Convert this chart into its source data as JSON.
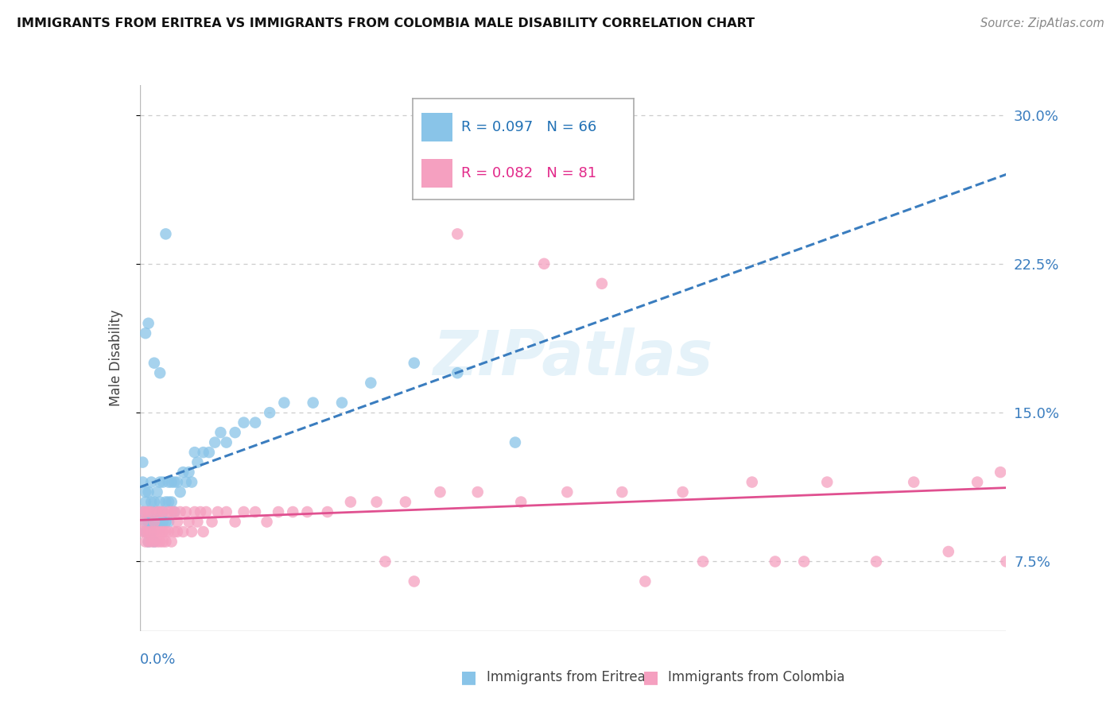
{
  "title": "IMMIGRANTS FROM ERITREA VS IMMIGRANTS FROM COLOMBIA MALE DISABILITY CORRELATION CHART",
  "source": "Source: ZipAtlas.com",
  "ylabel": "Male Disability",
  "yticks": [
    0.075,
    0.15,
    0.225,
    0.3
  ],
  "ytick_labels": [
    "7.5%",
    "15.0%",
    "22.5%",
    "30.0%"
  ],
  "xlim": [
    0.0,
    0.3
  ],
  "ylim": [
    0.04,
    0.315
  ],
  "eritrea_color": "#89c4e8",
  "eritrea_line_color": "#3a7dbf",
  "colombia_color": "#f5a0c0",
  "colombia_line_color": "#e05090",
  "bg_color": "#ffffff",
  "grid_color": "#cccccc",
  "watermark": "ZIPatlas",
  "er_R": "0.097",
  "er_N": "66",
  "co_R": "0.082",
  "co_N": "81",
  "er_x": [
    0.001,
    0.001,
    0.001,
    0.002,
    0.002,
    0.002,
    0.002,
    0.003,
    0.003,
    0.003,
    0.003,
    0.004,
    0.004,
    0.004,
    0.004,
    0.005,
    0.005,
    0.005,
    0.005,
    0.006,
    0.006,
    0.006,
    0.007,
    0.007,
    0.007,
    0.008,
    0.008,
    0.008,
    0.009,
    0.009,
    0.01,
    0.01,
    0.01,
    0.011,
    0.011,
    0.012,
    0.012,
    0.013,
    0.014,
    0.015,
    0.016,
    0.017,
    0.018,
    0.019,
    0.02,
    0.022,
    0.024,
    0.026,
    0.028,
    0.03,
    0.033,
    0.036,
    0.04,
    0.045,
    0.05,
    0.06,
    0.07,
    0.08,
    0.095,
    0.11,
    0.13,
    0.002,
    0.003,
    0.005,
    0.007,
    0.009
  ],
  "er_y": [
    0.115,
    0.1,
    0.125,
    0.105,
    0.095,
    0.11,
    0.09,
    0.1,
    0.095,
    0.11,
    0.085,
    0.095,
    0.105,
    0.115,
    0.09,
    0.095,
    0.105,
    0.1,
    0.085,
    0.1,
    0.095,
    0.11,
    0.115,
    0.105,
    0.095,
    0.115,
    0.1,
    0.095,
    0.105,
    0.095,
    0.105,
    0.115,
    0.095,
    0.115,
    0.105,
    0.115,
    0.1,
    0.115,
    0.11,
    0.12,
    0.115,
    0.12,
    0.115,
    0.13,
    0.125,
    0.13,
    0.13,
    0.135,
    0.14,
    0.135,
    0.14,
    0.145,
    0.145,
    0.15,
    0.155,
    0.155,
    0.155,
    0.165,
    0.175,
    0.17,
    0.135,
    0.19,
    0.195,
    0.175,
    0.17,
    0.24
  ],
  "co_x": [
    0.001,
    0.001,
    0.001,
    0.002,
    0.002,
    0.002,
    0.003,
    0.003,
    0.003,
    0.004,
    0.004,
    0.004,
    0.005,
    0.005,
    0.005,
    0.006,
    0.006,
    0.006,
    0.007,
    0.007,
    0.007,
    0.008,
    0.008,
    0.008,
    0.009,
    0.009,
    0.01,
    0.01,
    0.011,
    0.011,
    0.012,
    0.012,
    0.013,
    0.013,
    0.014,
    0.015,
    0.016,
    0.017,
    0.018,
    0.019,
    0.02,
    0.021,
    0.022,
    0.023,
    0.025,
    0.027,
    0.03,
    0.033,
    0.036,
    0.04,
    0.044,
    0.048,
    0.053,
    0.058,
    0.065,
    0.073,
    0.082,
    0.092,
    0.104,
    0.117,
    0.132,
    0.148,
    0.167,
    0.188,
    0.212,
    0.238,
    0.268,
    0.29,
    0.298,
    0.175,
    0.22,
    0.255,
    0.28,
    0.11,
    0.14,
    0.16,
    0.195,
    0.23,
    0.095,
    0.085,
    0.3
  ],
  "co_y": [
    0.1,
    0.09,
    0.095,
    0.085,
    0.09,
    0.1,
    0.085,
    0.09,
    0.1,
    0.085,
    0.09,
    0.1,
    0.085,
    0.09,
    0.095,
    0.085,
    0.09,
    0.1,
    0.085,
    0.09,
    0.1,
    0.085,
    0.09,
    0.1,
    0.085,
    0.09,
    0.09,
    0.1,
    0.085,
    0.1,
    0.09,
    0.1,
    0.09,
    0.095,
    0.1,
    0.09,
    0.1,
    0.095,
    0.09,
    0.1,
    0.095,
    0.1,
    0.09,
    0.1,
    0.095,
    0.1,
    0.1,
    0.095,
    0.1,
    0.1,
    0.095,
    0.1,
    0.1,
    0.1,
    0.1,
    0.105,
    0.105,
    0.105,
    0.11,
    0.11,
    0.105,
    0.11,
    0.11,
    0.11,
    0.115,
    0.115,
    0.115,
    0.115,
    0.12,
    0.065,
    0.075,
    0.075,
    0.08,
    0.24,
    0.225,
    0.215,
    0.075,
    0.075,
    0.065,
    0.075,
    0.075
  ]
}
